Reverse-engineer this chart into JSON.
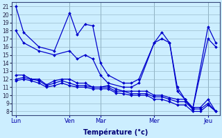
{
  "xlabel": "Température (°c)",
  "background_color": "#cceeff",
  "line_color": "#0000cc",
  "grid_color": "#99bbcc",
  "yticks": [
    8,
    9,
    10,
    11,
    12,
    13,
    14,
    15,
    16,
    17,
    18,
    19,
    20,
    21
  ],
  "ylim": [
    7.5,
    21.5
  ],
  "xtick_labels": [
    "Lun",
    "Ven",
    "Mar",
    "Mer",
    "Jeu"
  ],
  "xtick_positions": [
    0,
    7,
    11,
    18,
    25
  ],
  "xlim": [
    -0.5,
    26.5
  ],
  "num_points": 27,
  "line1_x": [
    0,
    1,
    3,
    5,
    7,
    8,
    9,
    10,
    11,
    12,
    14,
    15,
    16,
    18,
    19,
    20,
    21,
    22,
    23,
    25,
    26
  ],
  "line1_y": [
    21.0,
    17.8,
    16.0,
    15.5,
    20.2,
    17.5,
    18.8,
    18.6,
    14.0,
    12.5,
    11.5,
    11.5,
    12.0,
    16.5,
    17.8,
    16.5,
    11.0,
    9.5,
    8.3,
    18.5,
    16.5
  ],
  "line2_x": [
    0,
    1,
    3,
    5,
    7,
    8,
    9,
    10,
    11,
    12,
    14,
    15,
    16,
    18,
    19,
    20,
    21,
    22,
    23,
    25,
    26
  ],
  "line2_y": [
    18.0,
    16.5,
    15.5,
    15.0,
    15.5,
    14.5,
    15.0,
    14.5,
    12.5,
    11.5,
    11.0,
    11.0,
    11.5,
    16.5,
    17.0,
    16.5,
    10.5,
    9.5,
    8.3,
    17.0,
    16.0
  ],
  "line3_x": [
    0,
    1,
    2,
    3,
    4,
    5,
    6,
    7,
    8,
    9,
    10,
    11,
    12,
    13,
    14,
    15,
    16,
    17,
    18,
    19,
    20,
    21,
    22,
    23,
    24,
    25,
    26
  ],
  "line3_y": [
    12.5,
    12.5,
    12.0,
    12.0,
    11.3,
    11.8,
    12.0,
    12.0,
    11.5,
    11.5,
    11.0,
    11.0,
    11.2,
    10.8,
    10.5,
    10.5,
    10.5,
    10.5,
    10.0,
    10.0,
    9.7,
    9.5,
    9.5,
    8.5,
    8.5,
    9.5,
    8.0
  ],
  "line4_x": [
    0,
    1,
    2,
    3,
    4,
    5,
    6,
    7,
    8,
    9,
    10,
    11,
    12,
    13,
    14,
    15,
    16,
    17,
    18,
    19,
    20,
    21,
    22,
    23,
    24,
    25,
    26
  ],
  "line4_y": [
    12.0,
    12.2,
    12.0,
    11.8,
    11.2,
    11.5,
    11.8,
    11.5,
    11.2,
    11.2,
    11.0,
    11.0,
    11.0,
    10.5,
    10.5,
    10.2,
    10.2,
    10.2,
    9.8,
    9.8,
    9.5,
    9.2,
    9.2,
    8.3,
    8.3,
    9.0,
    8.0
  ],
  "line5_x": [
    0,
    1,
    2,
    3,
    4,
    5,
    6,
    7,
    8,
    9,
    10,
    11,
    12,
    13,
    14,
    15,
    16,
    17,
    18,
    19,
    20,
    21,
    22,
    23,
    24,
    25,
    26
  ],
  "line5_y": [
    11.8,
    12.0,
    11.8,
    11.5,
    11.0,
    11.2,
    11.5,
    11.2,
    11.0,
    11.0,
    10.8,
    10.8,
    10.8,
    10.3,
    10.2,
    10.0,
    10.0,
    10.0,
    9.5,
    9.5,
    9.2,
    8.8,
    8.8,
    8.0,
    8.0,
    8.8,
    8.0
  ]
}
